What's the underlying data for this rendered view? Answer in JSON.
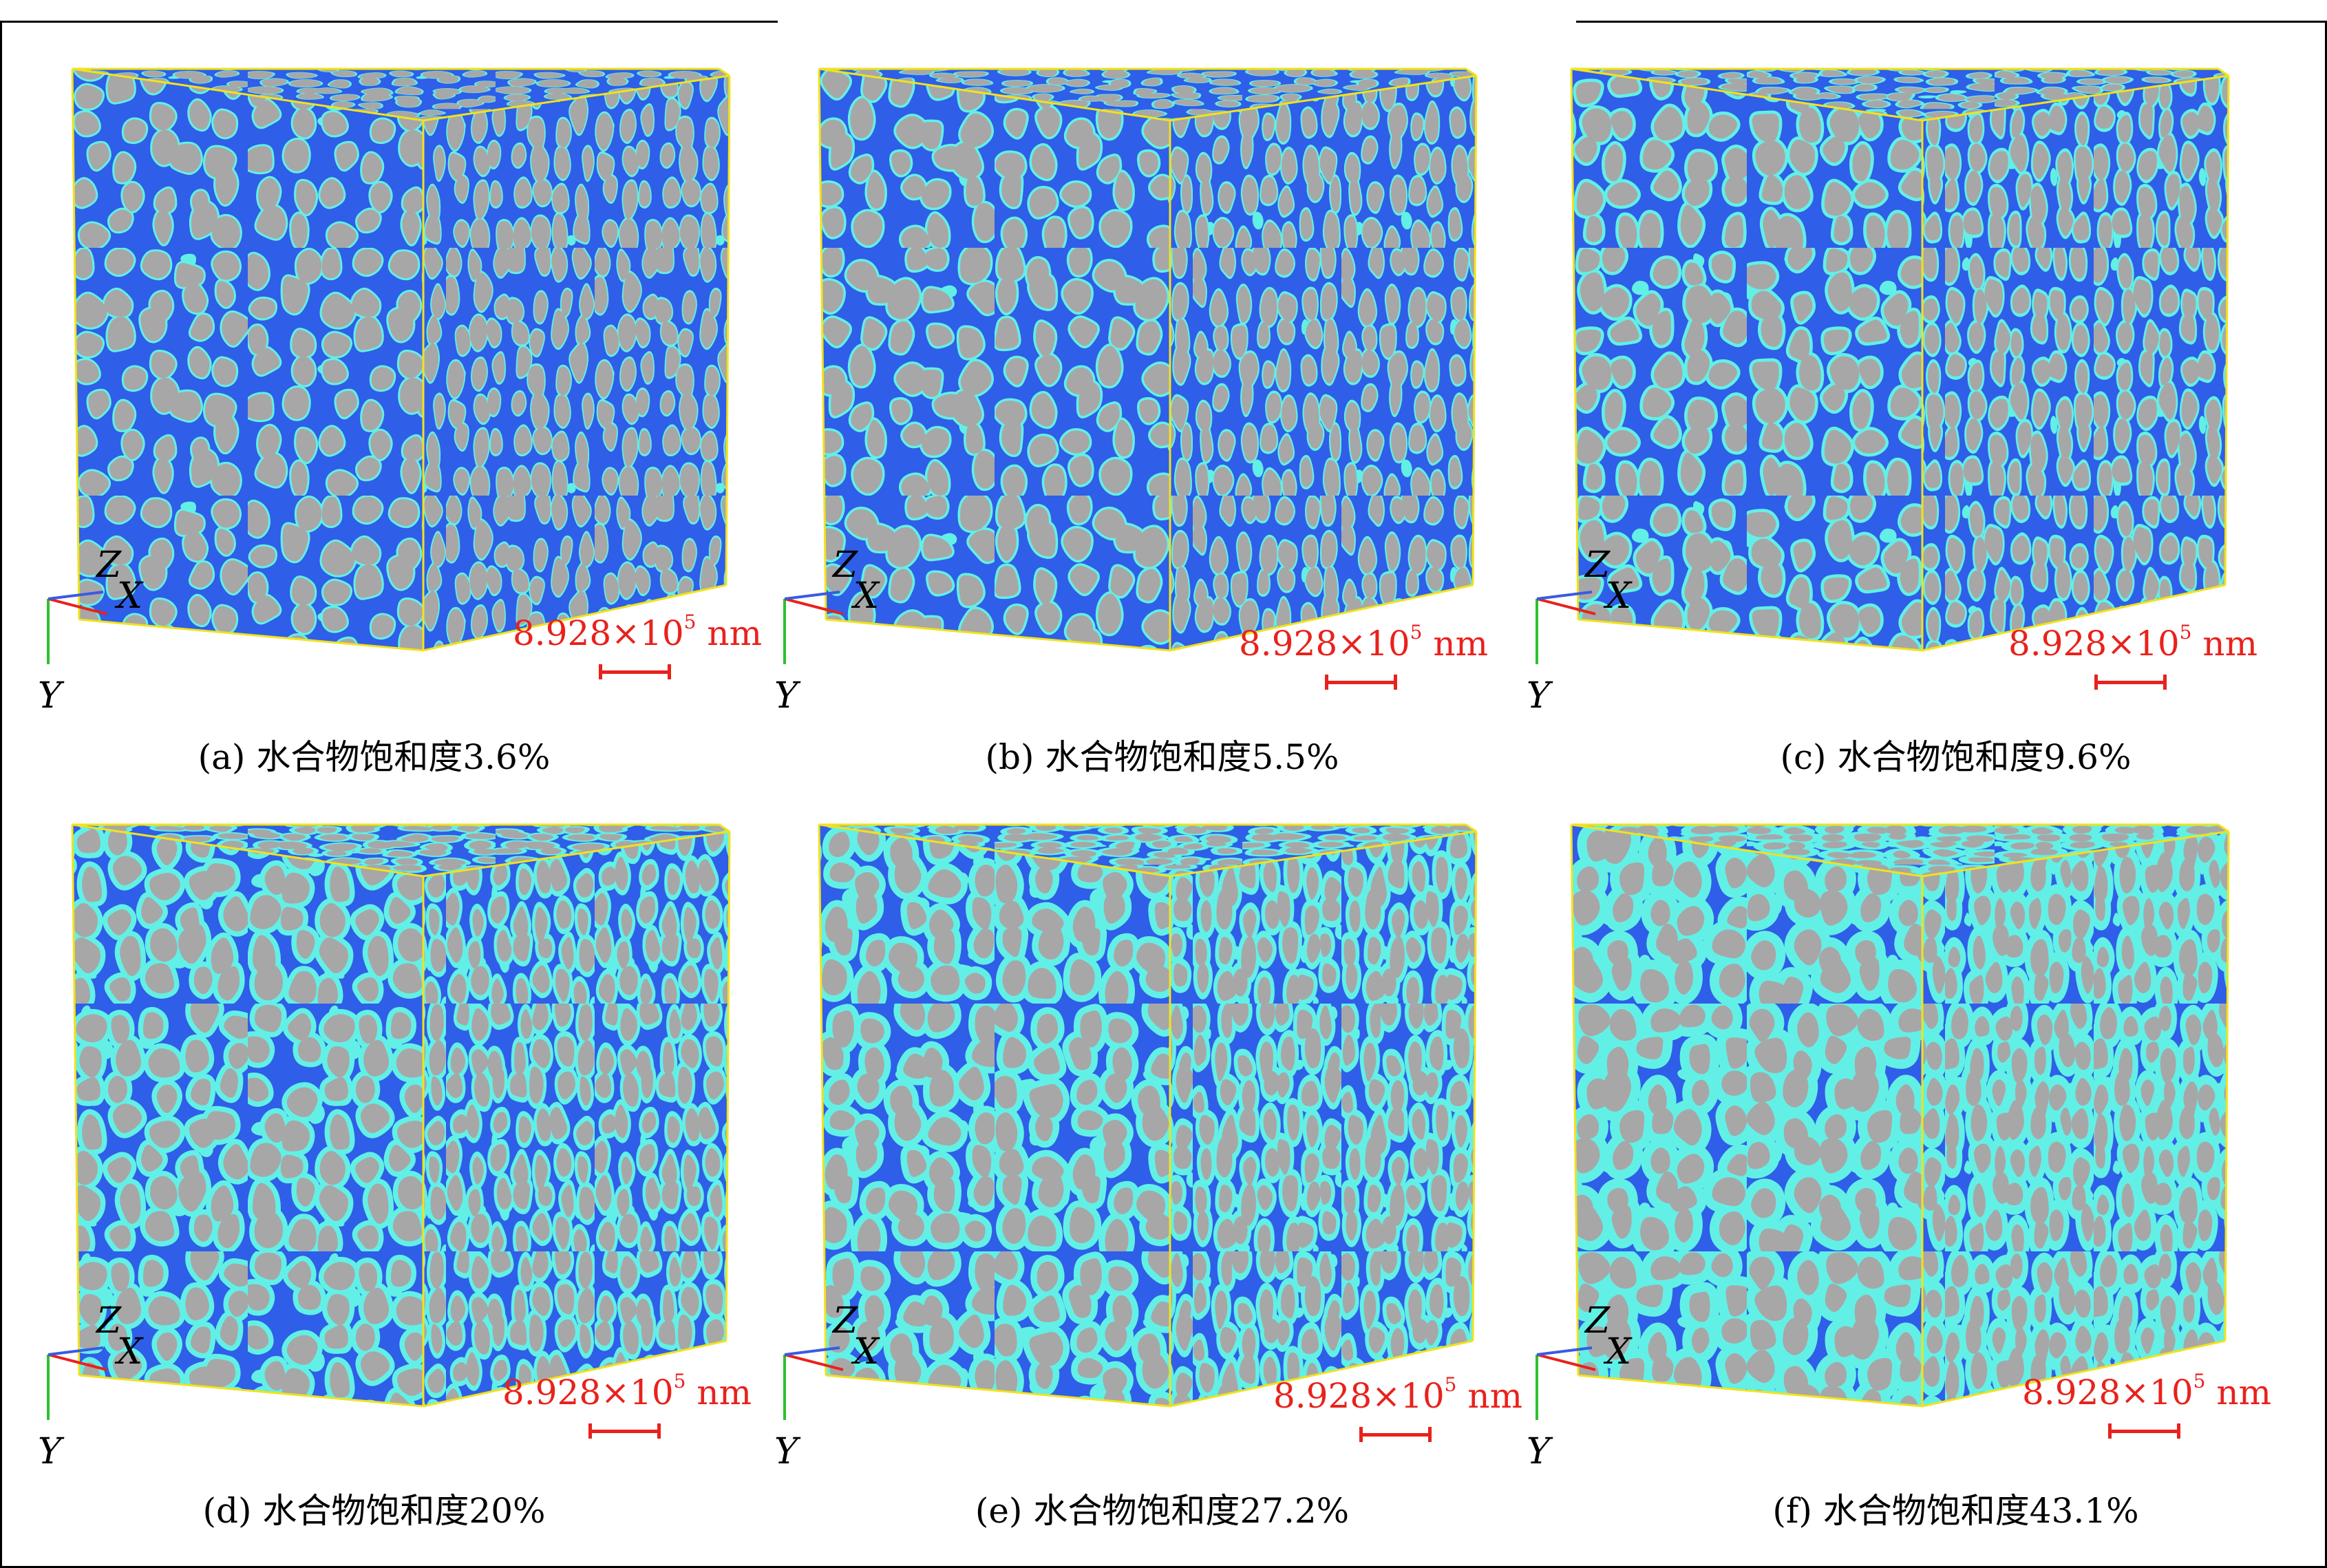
{
  "colors": {
    "pore": "#2f5ee8",
    "hydrate": "#62f0e6",
    "grain": "#a7a7a7",
    "cube_edge": "#f2e21c",
    "scale_red": "#e8221c",
    "axis_x": "#e8221c",
    "axis_y": "#2ec02e",
    "axis_z": "#3a5be0"
  },
  "axis_labels": {
    "x": "X",
    "y": "Y",
    "z": "Z"
  },
  "scale": {
    "mantissa": "8.928×10",
    "exponent": "5",
    "unit": " nm"
  },
  "panels": [
    {
      "label": "(a)",
      "text": "水合物饱和度3.6%",
      "saturation": 3.6
    },
    {
      "label": "(b)",
      "text": "水合物饱和度5.5%",
      "saturation": 5.5
    },
    {
      "label": "(c)",
      "text": "水合物饱和度9.6%",
      "saturation": 9.6
    },
    {
      "label": "(d)",
      "text": "水合物饱和度20%",
      "saturation": 20
    },
    {
      "label": "(e)",
      "text": "水合物饱和度27.2%",
      "saturation": 27.2
    },
    {
      "label": "(f)",
      "text": "水合物饱和度43.1%",
      "saturation": 43.1
    }
  ]
}
